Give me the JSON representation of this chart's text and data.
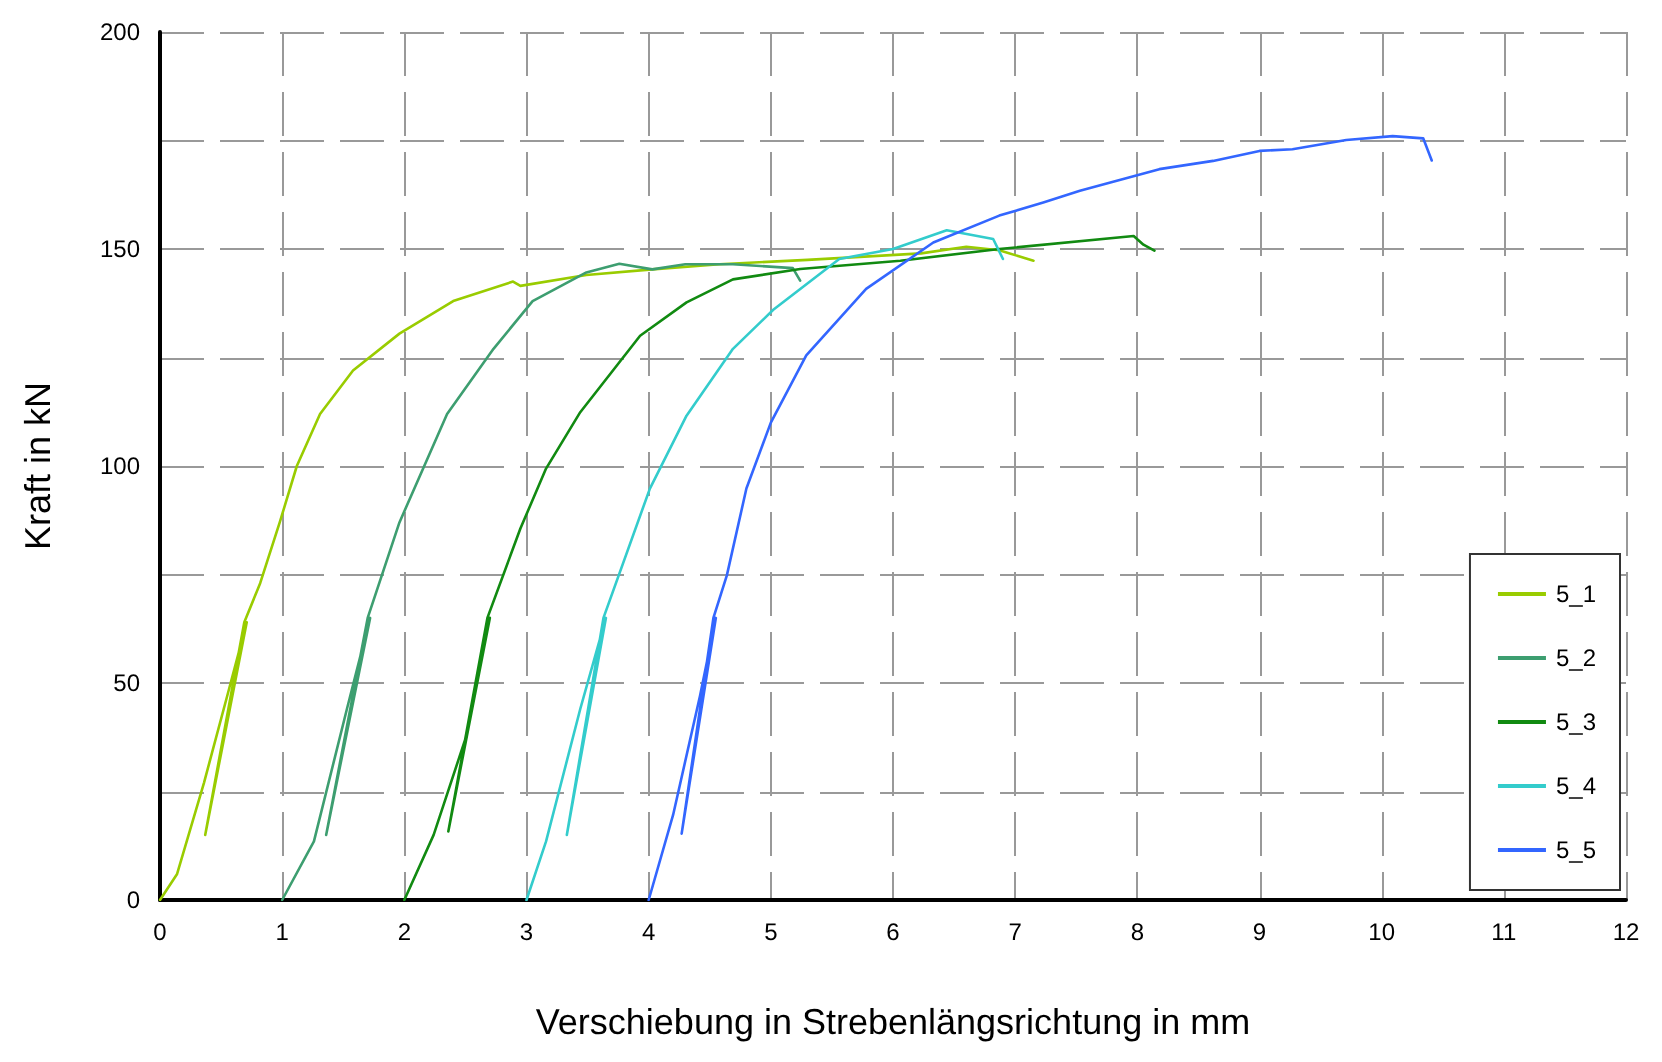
{
  "chart_data": {
    "type": "line",
    "xlabel": "Verschiebung in Strebenlängsrichtung in mm",
    "ylabel": "Kraft in kN",
    "xlim": [
      0,
      12
    ],
    "xticks": [
      0,
      1,
      2,
      3,
      4,
      5,
      6,
      7,
      8,
      9,
      10,
      11,
      12
    ],
    "ylim": [
      0,
      200
    ],
    "yticks": [
      0,
      {
        "value": 25,
        "label": null
      },
      50,
      {
        "value": 75,
        "label": null
      },
      100,
      {
        "value": 125,
        "label": null
      },
      150,
      {
        "value": 175,
        "label": null
      },
      200
    ],
    "grid": true,
    "legend": "bottom right",
    "marker": "none",
    "line_style": "solid",
    "series": [
      {
        "name": "5_1",
        "color": "#99cc00",
        "x": [
          0,
          0.14,
          0.36,
          0.55,
          0.71,
          0.37,
          0.69,
          0.82,
          0.98,
          1.12,
          1.31,
          1.58,
          1.96,
          2.4,
          2.89,
          2.95,
          3.49,
          4.03,
          4.58,
          5.3,
          6.23,
          6.6,
          6.87,
          7.15
        ],
        "values": [
          0,
          6,
          27,
          47,
          64,
          15,
          64,
          73,
          87,
          100,
          112,
          122,
          130.5,
          138,
          142.5,
          141.5,
          144,
          145.3,
          146.5,
          147.5,
          149,
          150.5,
          149.7,
          147.3
        ]
      },
      {
        "name": "5_2",
        "color": "#3d9e70",
        "x": [
          1,
          1.26,
          1.53,
          1.72,
          1.36,
          1.7,
          1.96,
          2.35,
          2.73,
          3.05,
          3.49,
          3.76,
          4.03,
          4.3,
          4.69,
          5.18,
          5.24
        ],
        "values": [
          0,
          13.5,
          44,
          65,
          15,
          65,
          87,
          112,
          127,
          138,
          144.6,
          146.6,
          145.3,
          146.5,
          146.5,
          145.6,
          142.7
        ]
      },
      {
        "name": "5_3",
        "color": "#118a11",
        "x": [
          2,
          2.24,
          2.51,
          2.7,
          2.36,
          2.68,
          2.95,
          3.16,
          3.44,
          3.93,
          4.31,
          4.69,
          5.24,
          6.06,
          6.87,
          7.97,
          8.05,
          8.14
        ],
        "values": [
          0,
          15,
          38,
          65,
          15.8,
          65,
          85.6,
          99.4,
          112.4,
          130,
          137.7,
          143,
          145.4,
          147.3,
          150,
          153,
          151,
          149.6
        ]
      },
      {
        "name": "5_4",
        "color": "#33cccc",
        "x": [
          3,
          3.16,
          3.44,
          3.65,
          3.33,
          3.63,
          4.01,
          4.31,
          4.69,
          5.02,
          5.56,
          6,
          6.44,
          6.82,
          6.9
        ],
        "values": [
          0,
          13.5,
          44,
          65,
          15,
          65,
          94.8,
          111.6,
          127,
          136,
          147.7,
          150,
          154.3,
          152.3,
          147.7
        ]
      },
      {
        "name": "5_5",
        "color": "#3366ff",
        "x": [
          4,
          4.2,
          4.42,
          4.55,
          4.27,
          4.53,
          4.64,
          4.8,
          5,
          5.29,
          5.78,
          6.33,
          6.87,
          7.23,
          7.53,
          8.18,
          8.62,
          9,
          9.27,
          9.71,
          10.09,
          10.34,
          10.41
        ],
        "values": [
          0,
          19.6,
          47,
          65,
          15.3,
          65,
          74.8,
          94.8,
          110,
          125.5,
          140.8,
          151.5,
          157.7,
          160.7,
          163.4,
          168.4,
          170.3,
          172.6,
          173,
          175.1,
          176,
          175.5,
          170.4
        ]
      }
    ]
  }
}
